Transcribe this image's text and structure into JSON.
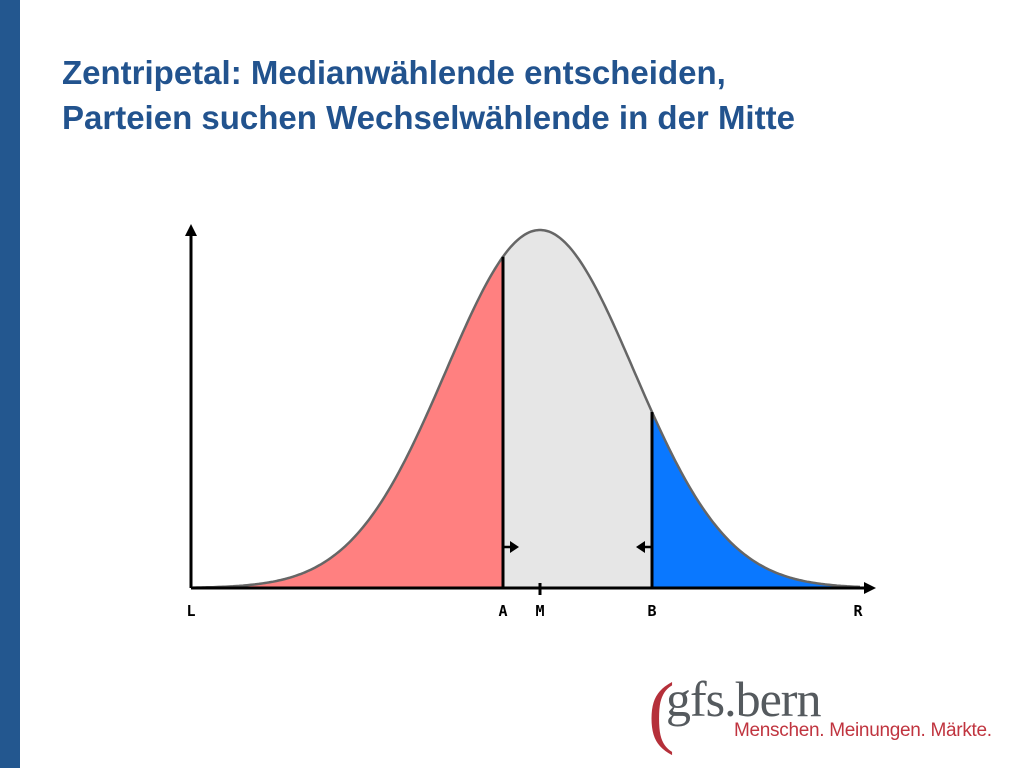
{
  "slide": {
    "title_line1": "Zentripetal: Medianwählende entscheiden,",
    "title_line2": "Parteien suchen Wechselwählende in der Mitte"
  },
  "diagram": {
    "axis_labels": {
      "left": "L",
      "a": "A",
      "median": "M",
      "b": "B",
      "right": "R"
    },
    "colors": {
      "left_region": "#ff8080",
      "middle_region": "#e6e6e6",
      "right_region": "#0a78ff",
      "axis": "#000000",
      "curve": "#666666"
    },
    "shift_markers": [
      "right-arrow-at-A",
      "left-arrow-at-B"
    ]
  },
  "logo": {
    "paren": "(",
    "name": "gfs.bern",
    "tagline": "Menschen. Meinungen. Märkte."
  }
}
